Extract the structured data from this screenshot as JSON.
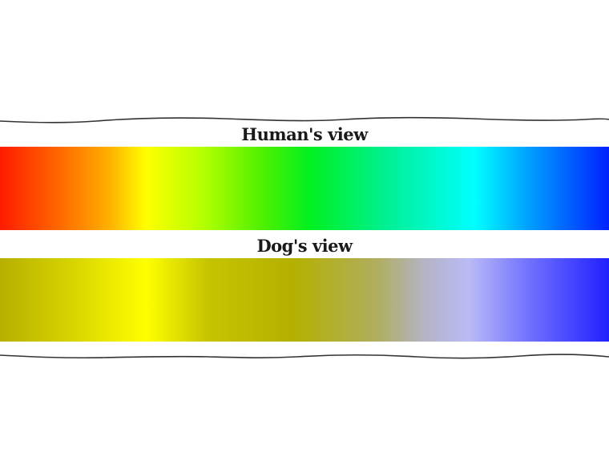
{
  "human": {
    "label": "Human's view",
    "gradient": [
      {
        "color": "#ff1a00",
        "stop": 0
      },
      {
        "color": "#ff6a00",
        "stop": 0.1
      },
      {
        "color": "#ffb000",
        "stop": 0.18
      },
      {
        "color": "#ffff00",
        "stop": 0.24
      },
      {
        "color": "#b8ff00",
        "stop": 0.33
      },
      {
        "color": "#50f000",
        "stop": 0.43
      },
      {
        "color": "#00f020",
        "stop": 0.51
      },
      {
        "color": "#00f090",
        "stop": 0.63
      },
      {
        "color": "#00ffff",
        "stop": 0.78
      },
      {
        "color": "#00a8ff",
        "stop": 0.86
      },
      {
        "color": "#0020ff",
        "stop": 1
      }
    ]
  },
  "dog": {
    "label": "Dog's view",
    "gradient": [
      {
        "color": "#b6b000",
        "stop": 0
      },
      {
        "color": "#d8d400",
        "stop": 0.12
      },
      {
        "color": "#ffff00",
        "stop": 0.24
      },
      {
        "color": "#c6c400",
        "stop": 0.34
      },
      {
        "color": "#b4b000",
        "stop": 0.48
      },
      {
        "color": "#b0ae60",
        "stop": 0.62
      },
      {
        "color": "#b4b4c8",
        "stop": 0.7
      },
      {
        "color": "#babaf6",
        "stop": 0.77
      },
      {
        "color": "#7070ff",
        "stop": 0.87
      },
      {
        "color": "#2020ff",
        "stop": 1
      }
    ]
  }
}
